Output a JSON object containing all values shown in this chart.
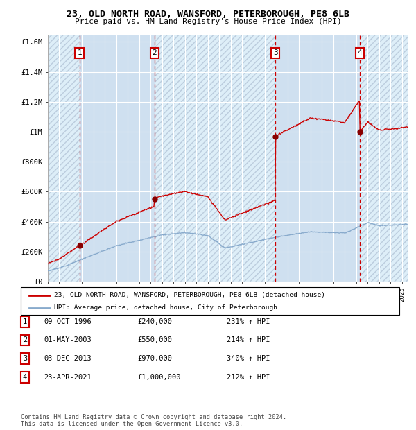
{
  "title1": "23, OLD NORTH ROAD, WANSFORD, PETERBOROUGH, PE8 6LB",
  "title2": "Price paid vs. HM Land Registry's House Price Index (HPI)",
  "plot_bg_color": "#cfe0f0",
  "hatch_bg_color": "#ddeeff",
  "sale_years_float": [
    1996.77,
    2003.33,
    2013.92,
    2021.31
  ],
  "sale_prices": [
    240000,
    550000,
    970000,
    1000000
  ],
  "sale_labels": [
    "1",
    "2",
    "3",
    "4"
  ],
  "legend_line1": "23, OLD NORTH ROAD, WANSFORD, PETERBOROUGH, PE8 6LB (detached house)",
  "legend_line2": "HPI: Average price, detached house, City of Peterborough",
  "table": [
    {
      "num": "1",
      "date": "09-OCT-1996",
      "price": "£240,000",
      "hpi": "231% ↑ HPI"
    },
    {
      "num": "2",
      "date": "01-MAY-2003",
      "price": "£550,000",
      "hpi": "214% ↑ HPI"
    },
    {
      "num": "3",
      "date": "03-DEC-2013",
      "price": "£970,000",
      "hpi": "340% ↑ HPI"
    },
    {
      "num": "4",
      "date": "23-APR-2021",
      "price": "£1,000,000",
      "hpi": "212% ↑ HPI"
    }
  ],
  "footnote1": "Contains HM Land Registry data © Crown copyright and database right 2024.",
  "footnote2": "This data is licensed under the Open Government Licence v3.0.",
  "ylim": [
    0,
    1650000
  ],
  "xlim_start": 1994.0,
  "xlim_end": 2025.5,
  "red_line_color": "#cc0000",
  "blue_line_color": "#88aacc",
  "marker_color": "#880000",
  "hatched_regions": [
    {
      "start": 1994.0,
      "end": 1996.77
    },
    {
      "start": 2003.33,
      "end": 2013.92
    },
    {
      "start": 2021.31,
      "end": 2025.5
    }
  ],
  "plain_regions": [
    {
      "start": 1996.77,
      "end": 2003.33
    },
    {
      "start": 2013.92,
      "end": 2021.31
    }
  ],
  "yticks": [
    0,
    200000,
    400000,
    600000,
    800000,
    1000000,
    1200000,
    1400000,
    1600000
  ],
  "ytick_labels": [
    "£0",
    "£200K",
    "£400K",
    "£600K",
    "£800K",
    "£1M",
    "£1.2M",
    "£1.4M",
    "£1.6M"
  ]
}
